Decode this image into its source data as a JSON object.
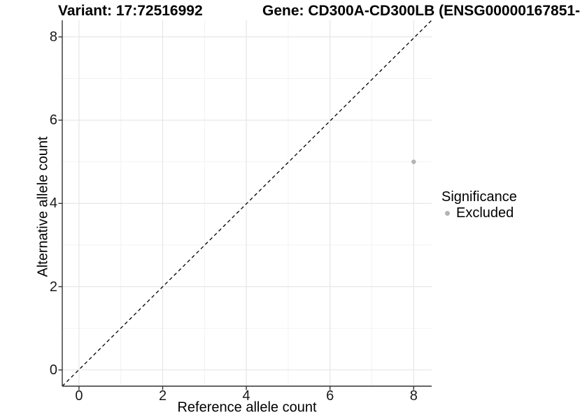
{
  "titles": {
    "variant": "Variant: 17:72516992",
    "gene": "Gene: CD300A-CD300LB (ENSG00000167851-"
  },
  "axes": {
    "x_label": "Reference allele count",
    "y_label": "Alternative allele count"
  },
  "legend": {
    "title": "Significance",
    "items": [
      {
        "label": "Excluded",
        "color": "#b4b4b4"
      }
    ]
  },
  "chart_data": {
    "type": "scatter",
    "title": "Variant: 17:72516992 | Gene: CD300A-CD300LB (ENSG00000167851-",
    "xlabel": "Reference allele count",
    "ylabel": "Alternative allele count",
    "xlim": [
      -0.4,
      8.43
    ],
    "ylim": [
      -0.39,
      8.4
    ],
    "x_ticks": [
      0,
      2,
      4,
      6,
      8
    ],
    "y_ticks": [
      0,
      2,
      4,
      6,
      8
    ],
    "x_minor_ticks": [
      1,
      3,
      5,
      7
    ],
    "y_minor_ticks": [
      1,
      3,
      5,
      7
    ],
    "grid": true,
    "legend_position": "right",
    "series": [
      {
        "name": "Excluded",
        "color": "#b4b4b4",
        "points": [
          [
            8,
            5
          ]
        ],
        "point_radius": 3.2
      }
    ],
    "reference_line": {
      "type": "identity",
      "style": "dashed",
      "color": "#000000"
    },
    "colors": {
      "background": "#ffffff",
      "panel_background": "#ffffff",
      "grid_major": "#e4e4e4",
      "grid_minor": "#f1f1f1",
      "axis_line": "#333333",
      "tick_text": "#1a1a1a",
      "title_text": "#000000"
    }
  }
}
